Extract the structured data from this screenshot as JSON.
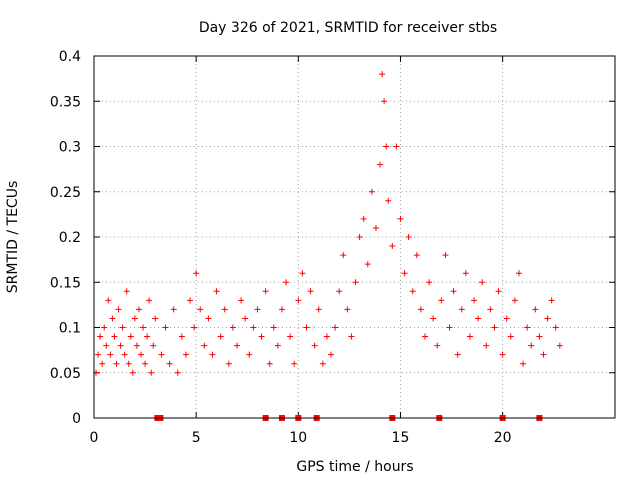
{
  "chart_data": {
    "type": "scatter",
    "title": "Day 326 of 2021, SRMTID for receiver stbs",
    "xlabel": "GPS time / hours",
    "ylabel": "SRMTID / TECUs",
    "xlim": [
      0,
      25.5
    ],
    "ylim": [
      0,
      0.4
    ],
    "x_ticks": [
      0,
      5,
      10,
      15,
      20
    ],
    "x_tick_labels": [
      "0",
      "5",
      "10",
      "15",
      "20"
    ],
    "y_ticks": [
      0,
      0.05,
      0.1,
      0.15,
      0.2,
      0.25,
      0.3,
      0.35,
      0.4
    ],
    "y_tick_labels": [
      "0",
      "0.05",
      "0.1",
      "0.15",
      "0.2",
      "0.25",
      "0.3",
      "0.35",
      "0.4"
    ],
    "grid": true,
    "marker": "+",
    "color": "#ff0000",
    "series": [
      {
        "name": "SRMTID",
        "description_points_xy": [
          [
            0.1,
            0.05
          ],
          [
            0.2,
            0.07
          ],
          [
            0.3,
            0.09
          ],
          [
            0.4,
            0.06
          ],
          [
            0.5,
            0.1
          ],
          [
            0.6,
            0.08
          ],
          [
            0.7,
            0.13
          ],
          [
            0.8,
            0.07
          ],
          [
            0.9,
            0.11
          ],
          [
            1.0,
            0.09
          ],
          [
            1.1,
            0.06
          ],
          [
            1.2,
            0.12
          ],
          [
            1.3,
            0.08
          ],
          [
            1.4,
            0.1
          ],
          [
            1.5,
            0.07
          ],
          [
            1.6,
            0.14
          ],
          [
            1.7,
            0.06
          ],
          [
            1.8,
            0.09
          ],
          [
            1.9,
            0.05
          ],
          [
            2.0,
            0.11
          ],
          [
            2.1,
            0.08
          ],
          [
            2.2,
            0.12
          ],
          [
            2.3,
            0.07
          ],
          [
            2.4,
            0.1
          ],
          [
            2.5,
            0.06
          ],
          [
            2.6,
            0.09
          ],
          [
            2.7,
            0.13
          ],
          [
            2.8,
            0.05
          ],
          [
            2.9,
            0.08
          ],
          [
            3.0,
            0.11
          ],
          [
            3.3,
            0.07
          ],
          [
            3.5,
            0.1
          ],
          [
            3.7,
            0.06
          ],
          [
            3.9,
            0.12
          ],
          [
            4.1,
            0.05
          ],
          [
            4.3,
            0.09
          ],
          [
            4.5,
            0.07
          ],
          [
            4.7,
            0.13
          ],
          [
            4.9,
            0.1
          ],
          [
            5.0,
            0.16
          ],
          [
            5.2,
            0.12
          ],
          [
            5.4,
            0.08
          ],
          [
            5.6,
            0.11
          ],
          [
            5.8,
            0.07
          ],
          [
            6.0,
            0.14
          ],
          [
            6.2,
            0.09
          ],
          [
            6.4,
            0.12
          ],
          [
            6.6,
            0.06
          ],
          [
            6.8,
            0.1
          ],
          [
            7.0,
            0.08
          ],
          [
            7.2,
            0.13
          ],
          [
            7.4,
            0.11
          ],
          [
            7.6,
            0.07
          ],
          [
            7.8,
            0.1
          ],
          [
            8.0,
            0.12
          ],
          [
            8.2,
            0.09
          ],
          [
            8.4,
            0.14
          ],
          [
            8.6,
            0.06
          ],
          [
            8.8,
            0.1
          ],
          [
            9.0,
            0.08
          ],
          [
            9.2,
            0.12
          ],
          [
            9.4,
            0.15
          ],
          [
            9.6,
            0.09
          ],
          [
            9.8,
            0.06
          ],
          [
            10.0,
            0.13
          ],
          [
            10.2,
            0.16
          ],
          [
            10.4,
            0.1
          ],
          [
            10.6,
            0.14
          ],
          [
            10.8,
            0.08
          ],
          [
            11.0,
            0.12
          ],
          [
            11.2,
            0.06
          ],
          [
            11.4,
            0.09
          ],
          [
            11.6,
            0.07
          ],
          [
            11.8,
            0.1
          ],
          [
            12.0,
            0.14
          ],
          [
            12.2,
            0.18
          ],
          [
            12.4,
            0.12
          ],
          [
            12.6,
            0.09
          ],
          [
            12.8,
            0.15
          ],
          [
            13.0,
            0.2
          ],
          [
            13.2,
            0.22
          ],
          [
            13.4,
            0.17
          ],
          [
            13.6,
            0.25
          ],
          [
            13.8,
            0.21
          ],
          [
            14.0,
            0.28
          ],
          [
            14.1,
            0.38
          ],
          [
            14.2,
            0.35
          ],
          [
            14.3,
            0.3
          ],
          [
            14.4,
            0.24
          ],
          [
            14.6,
            0.19
          ],
          [
            14.8,
            0.3
          ],
          [
            15.0,
            0.22
          ],
          [
            15.2,
            0.16
          ],
          [
            15.4,
            0.2
          ],
          [
            15.6,
            0.14
          ],
          [
            15.8,
            0.18
          ],
          [
            16.0,
            0.12
          ],
          [
            16.2,
            0.09
          ],
          [
            16.4,
            0.15
          ],
          [
            16.6,
            0.11
          ],
          [
            16.8,
            0.08
          ],
          [
            17.0,
            0.13
          ],
          [
            17.2,
            0.18
          ],
          [
            17.4,
            0.1
          ],
          [
            17.6,
            0.14
          ],
          [
            17.8,
            0.07
          ],
          [
            18.0,
            0.12
          ],
          [
            18.2,
            0.16
          ],
          [
            18.4,
            0.09
          ],
          [
            18.6,
            0.13
          ],
          [
            18.8,
            0.11
          ],
          [
            19.0,
            0.15
          ],
          [
            19.2,
            0.08
          ],
          [
            19.4,
            0.12
          ],
          [
            19.6,
            0.1
          ],
          [
            19.8,
            0.14
          ],
          [
            20.0,
            0.07
          ],
          [
            20.2,
            0.11
          ],
          [
            20.4,
            0.09
          ],
          [
            20.6,
            0.13
          ],
          [
            20.8,
            0.16
          ],
          [
            21.0,
            0.06
          ],
          [
            21.2,
            0.1
          ],
          [
            21.4,
            0.08
          ],
          [
            21.6,
            0.12
          ],
          [
            21.8,
            0.09
          ],
          [
            22.0,
            0.07
          ],
          [
            22.2,
            0.11
          ],
          [
            22.4,
            0.13
          ],
          [
            22.6,
            0.1
          ],
          [
            22.8,
            0.08
          ]
        ]
      }
    ],
    "gap_markers_x": [
      3.1,
      3.25,
      8.4,
      9.2,
      10.0,
      10.9,
      14.6,
      16.9,
      20.0,
      21.8
    ]
  }
}
